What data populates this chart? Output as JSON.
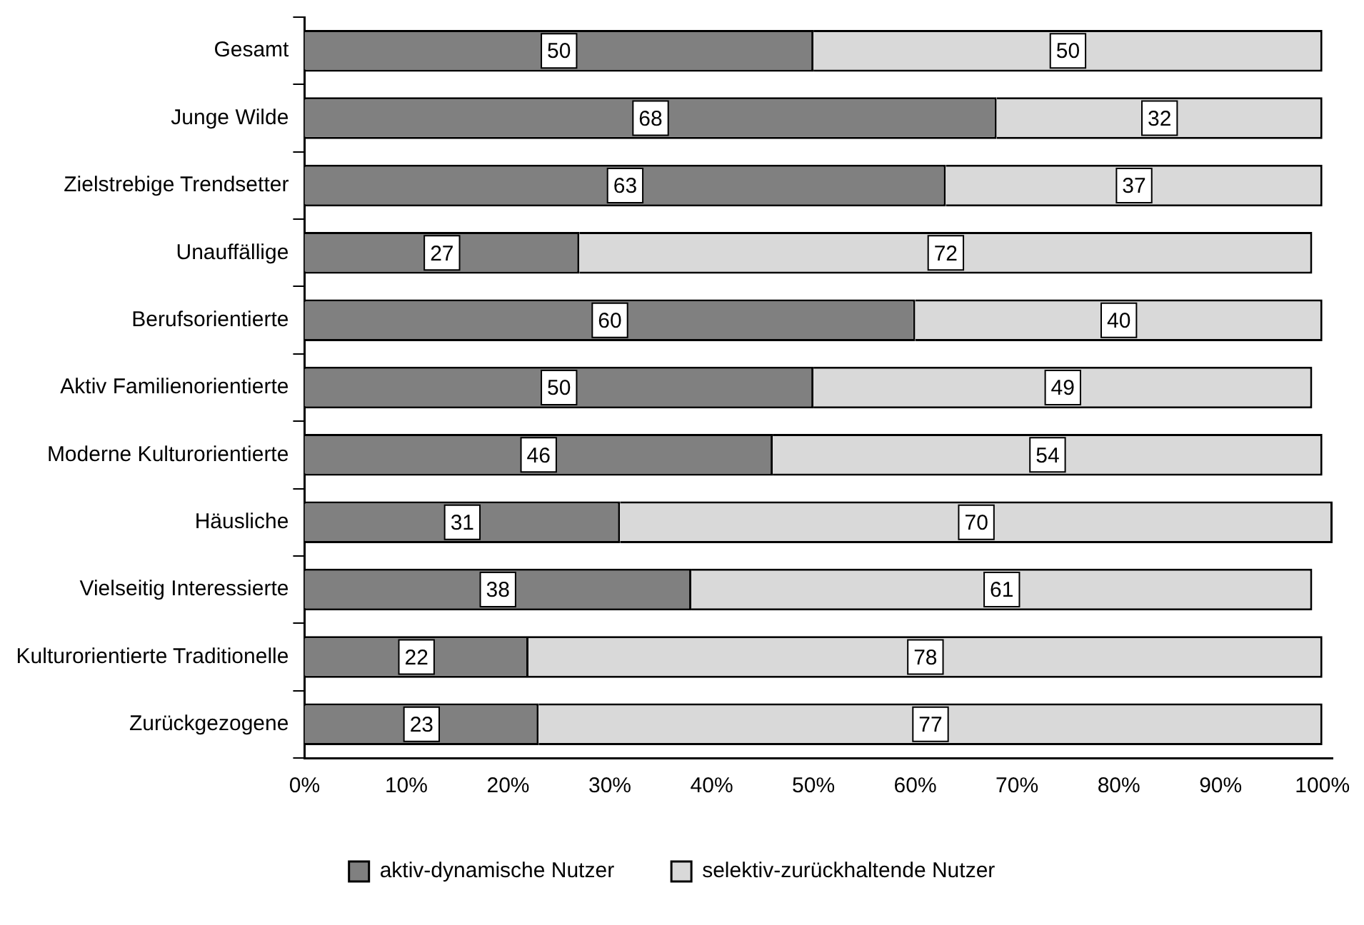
{
  "chart_data": {
    "type": "bar",
    "orientation": "horizontal",
    "stacked": true,
    "data_labels": true,
    "legend": "bottom",
    "grid": false,
    "categories": [
      "Gesamt",
      "Junge Wilde",
      "Zielstrebige Trendsetter",
      "Unauffällige",
      "Berufsorientierte",
      "Aktiv Familienorientierte",
      "Moderne Kulturorientierte",
      "Häusliche",
      "Vielseitig Interessierte",
      "Kulturorientierte Traditionelle",
      "Zurückgezogene"
    ],
    "series": [
      {
        "name": "aktiv-dynamische Nutzer",
        "color": "#808080",
        "values": [
          50,
          68,
          63,
          27,
          60,
          50,
          46,
          31,
          38,
          22,
          23
        ]
      },
      {
        "name": "selektiv-zurückhaltende Nutzer",
        "color": "#d9d9d9",
        "values": [
          50,
          32,
          37,
          72,
          40,
          49,
          54,
          70,
          61,
          78,
          77
        ]
      }
    ],
    "xlim": [
      0,
      101
    ],
    "xticks": [
      {
        "value": 0,
        "label": "0%"
      },
      {
        "value": 10,
        "label": "10%"
      },
      {
        "value": 20,
        "label": "20%"
      },
      {
        "value": 30,
        "label": "30%"
      },
      {
        "value": 40,
        "label": "40%"
      },
      {
        "value": 50,
        "label": "50%"
      },
      {
        "value": 60,
        "label": "60%"
      },
      {
        "value": 70,
        "label": "70%"
      },
      {
        "value": 80,
        "label": "80%"
      },
      {
        "value": 90,
        "label": "90%"
      },
      {
        "value": 100,
        "label": "100%"
      }
    ]
  }
}
